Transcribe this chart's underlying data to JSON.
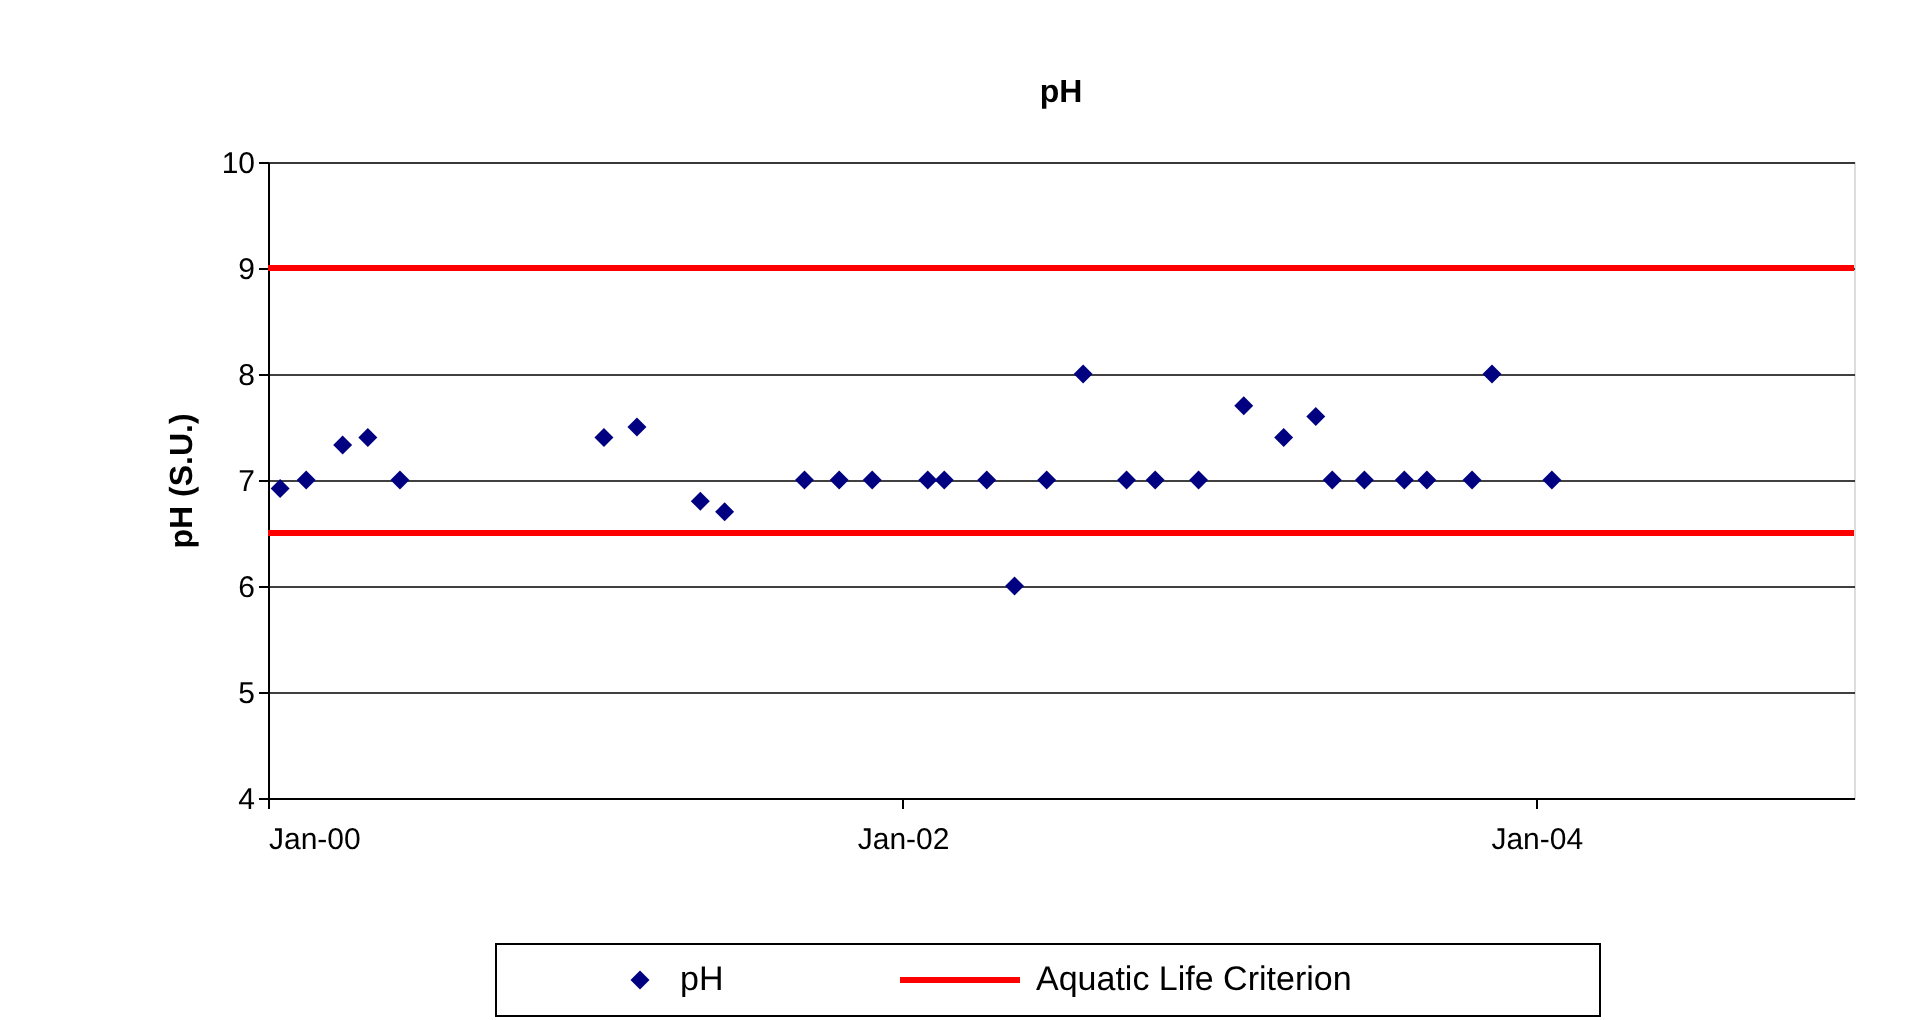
{
  "chart_data": {
    "type": "scatter",
    "title": "pH",
    "ylabel": "pH (S.U.)",
    "x": [
      "2000-01-15",
      "2000-02-14",
      "2000-03-27",
      "2000-04-25",
      "2000-06-01",
      "2001-01-22",
      "2001-03-01",
      "2001-05-13",
      "2001-06-10",
      "2001-09-10",
      "2001-10-20",
      "2001-11-27",
      "2002-01-30",
      "2002-02-18",
      "2002-04-08",
      "2002-05-10",
      "2002-06-16",
      "2002-07-28",
      "2002-09-16",
      "2002-10-19",
      "2002-12-08",
      "2003-01-29",
      "2003-03-16",
      "2003-04-22",
      "2003-05-11",
      "2003-06-17",
      "2003-08-02",
      "2003-08-28",
      "2003-10-19",
      "2003-11-11",
      "2004-01-19"
    ],
    "series": [
      {
        "name": "pH",
        "color": "#000080",
        "values": [
          6.92,
          7.0,
          7.33,
          7.4,
          7.0,
          7.4,
          7.5,
          6.8,
          6.7,
          7.0,
          7.0,
          7.0,
          7.0,
          7.0,
          7.0,
          6.0,
          7.0,
          8.0,
          7.0,
          7.0,
          7.0,
          7.7,
          7.4,
          7.6,
          7.0,
          7.0,
          7.0,
          7.0,
          7.0,
          8.0,
          7.0
        ]
      }
    ],
    "marker": "diamond",
    "xlim": [
      "2000-01",
      "2005-01"
    ],
    "xticks": [
      {
        "value": "2000-01",
        "label": "Jan-00"
      },
      {
        "value": "2002-01",
        "label": "Jan-02"
      },
      {
        "value": "2004-01",
        "label": "Jan-04"
      }
    ],
    "ylim": [
      4,
      10
    ],
    "yticks": [
      4,
      5,
      6,
      7,
      8,
      9,
      10
    ],
    "ref_lines": [
      {
        "axis": "y",
        "value": 9,
        "label": "Aquatic Life Criterion",
        "color": "#ff0000"
      },
      {
        "axis": "y",
        "value": 6.5,
        "color": "#ff0000"
      }
    ],
    "grid": "y",
    "legend": "bottom"
  }
}
